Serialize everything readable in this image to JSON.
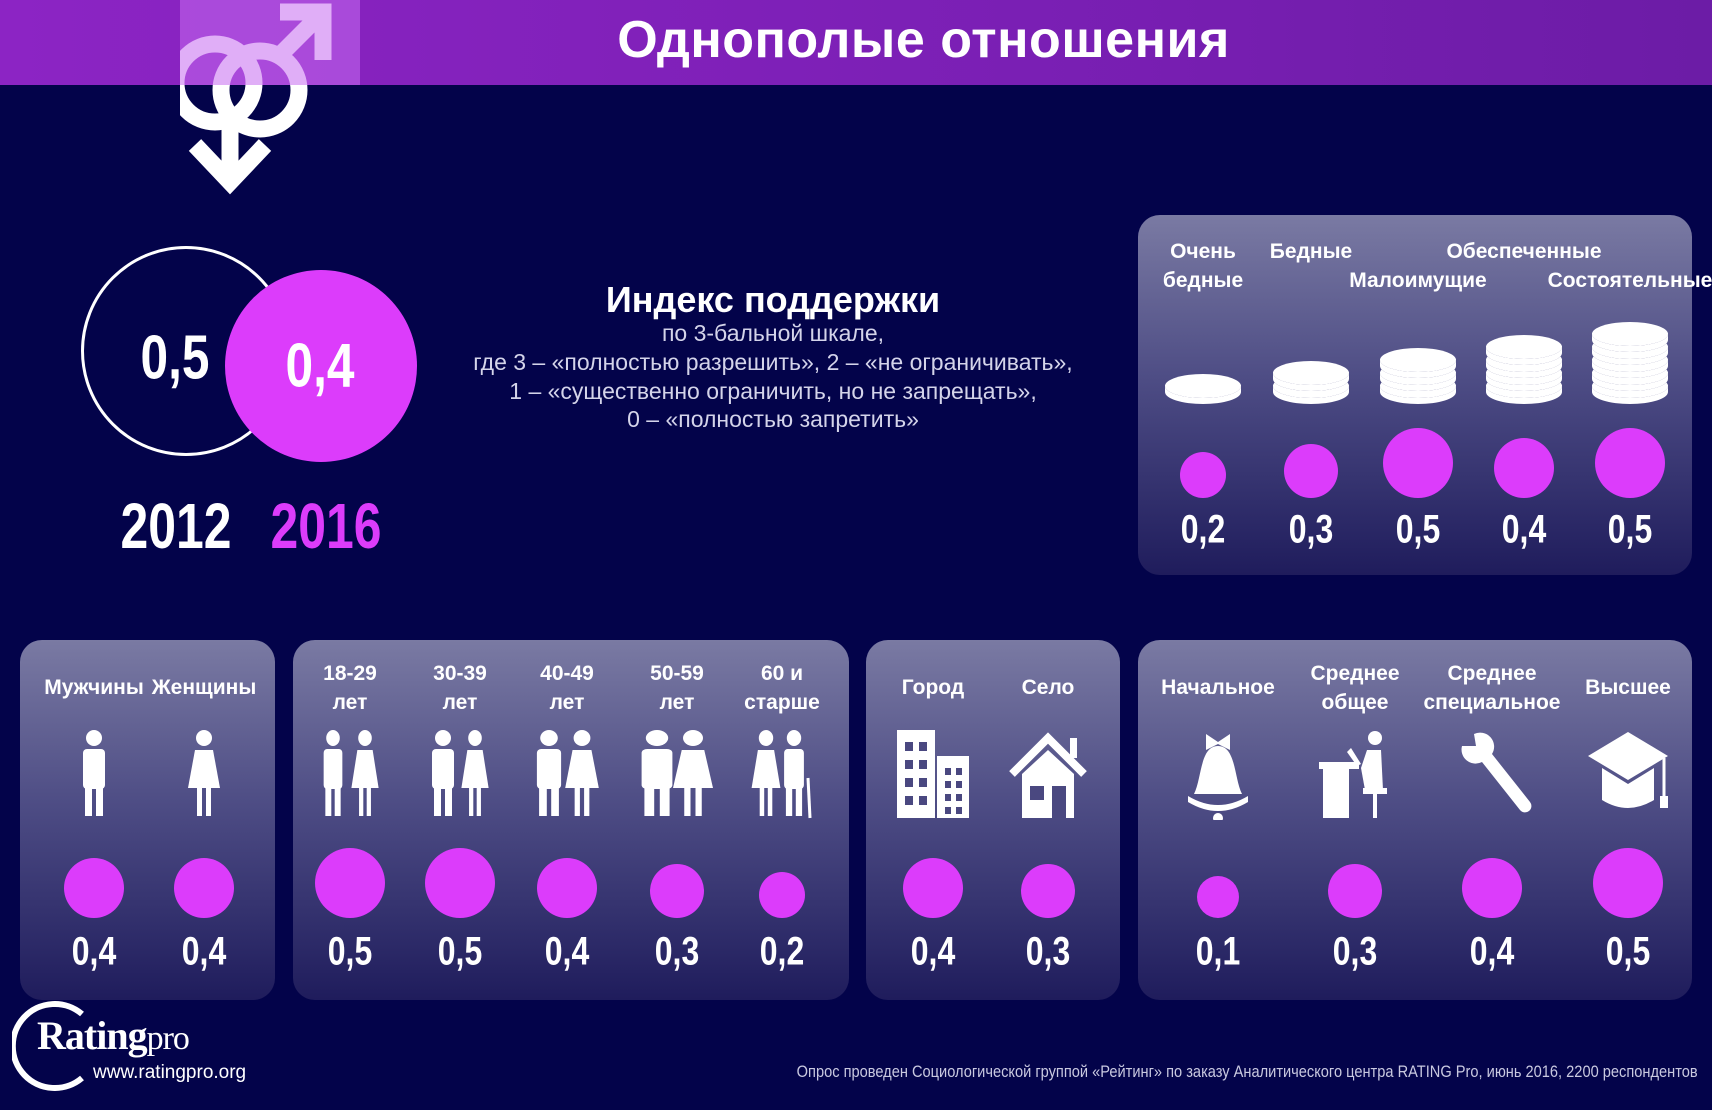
{
  "title": "Однополые отношения",
  "colors": {
    "background": "#03034a",
    "header": "#8c24c4",
    "accent": "#dc3cfb"
  },
  "icon": "gender-symbol-icon",
  "overall": {
    "years": [
      {
        "year": "2012",
        "value": "0,5"
      },
      {
        "year": "2016",
        "value": "0,4"
      }
    ]
  },
  "index": {
    "title": "Индекс поддержки",
    "lines": [
      "по 3-бальной шкале,",
      "где 3 – «полностью разрешить», 2 – «не ограничивать»,",
      "1 – «существенно ограничить, но не запрещать»,",
      "0 – «полностью запретить»"
    ]
  },
  "income": {
    "items": [
      {
        "label": [
          "Очень",
          "бедные"
        ],
        "value": "0,2",
        "v": 0.2,
        "coins": 1
      },
      {
        "label": [
          "Бедные"
        ],
        "value": "0,3",
        "v": 0.3,
        "coins": 2
      },
      {
        "label": [
          "",
          "Малоимущие"
        ],
        "value": "0,5",
        "v": 0.5,
        "coins": 3
      },
      {
        "label": [
          "Обеспеченные"
        ],
        "value": "0,4",
        "v": 0.4,
        "coins": 4
      },
      {
        "label": [
          "",
          "Состоятельные"
        ],
        "value": "0,5",
        "v": 0.5,
        "coins": 5
      }
    ]
  },
  "panels": [
    {
      "name": "gender",
      "items": [
        {
          "label": [
            "Мужчины"
          ],
          "icon": "man-icon",
          "value": "0,4",
          "v": 0.4
        },
        {
          "label": [
            "Женщины"
          ],
          "icon": "woman-icon",
          "value": "0,4",
          "v": 0.4
        }
      ]
    },
    {
      "name": "age",
      "items": [
        {
          "label": [
            "18-29",
            "лет"
          ],
          "icon": "young-couple-icon",
          "value": "0,5",
          "v": 0.5
        },
        {
          "label": [
            "30-39",
            "лет"
          ],
          "icon": "business-couple-icon",
          "value": "0,5",
          "v": 0.5
        },
        {
          "label": [
            "40-49",
            "лет"
          ],
          "icon": "couple-icon",
          "value": "0,4",
          "v": 0.4
        },
        {
          "label": [
            "50-59",
            "лет"
          ],
          "icon": "middle-aged-couple-icon",
          "value": "0,3",
          "v": 0.3
        },
        {
          "label": [
            "60 и",
            "старше"
          ],
          "icon": "elderly-couple-icon",
          "value": "0,2",
          "v": 0.2
        }
      ]
    },
    {
      "name": "settlement",
      "items": [
        {
          "label": [
            "Город"
          ],
          "icon": "building-icon",
          "value": "0,4",
          "v": 0.4
        },
        {
          "label": [
            "Село"
          ],
          "icon": "house-icon",
          "value": "0,3",
          "v": 0.3
        }
      ]
    },
    {
      "name": "education",
      "items": [
        {
          "label": [
            "Начальное"
          ],
          "icon": "school-bell-icon",
          "value": "0,1",
          "v": 0.1
        },
        {
          "label": [
            "Среднее",
            "общее"
          ],
          "icon": "student-desk-icon",
          "value": "0,3",
          "v": 0.3
        },
        {
          "label": [
            "Среднее",
            "специальное"
          ],
          "icon": "wrench-icon",
          "value": "0,4",
          "v": 0.4
        },
        {
          "label": [
            "Высшее"
          ],
          "icon": "graduation-cap-icon",
          "value": "0,5",
          "v": 0.5
        }
      ]
    }
  ],
  "logo": {
    "text": "Ratingpro",
    "url": "www.ratingpro.org"
  },
  "footnote": "Опрос проведен Социологической группой «Рейтинг» по заказу Аналитического центра RATING Pro, июнь 2016, 2200 респондентов"
}
